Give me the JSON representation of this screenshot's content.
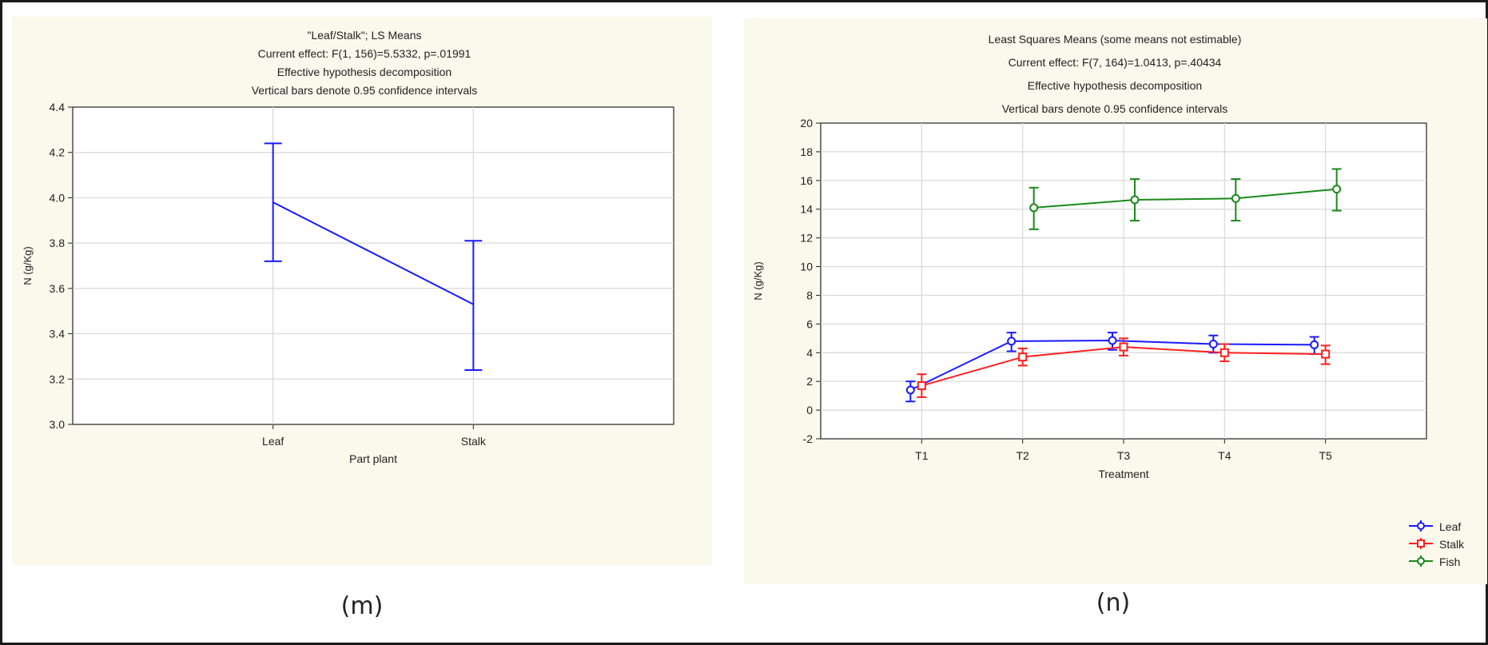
{
  "captions": {
    "m": "(m)",
    "n": "(n)"
  },
  "chart_data": [
    {
      "type": "line",
      "title_lines": [
        "\"Leaf/Stalk\"; LS Means",
        "Current effect: F(1, 156)=5.5332, p=.01991",
        "Effective hypothesis decomposition",
        "Vertical bars denote 0.95 confidence intervals"
      ],
      "xlabel": "Part plant",
      "ylabel": "N (g/Kg)",
      "ylim": [
        3.0,
        4.4
      ],
      "yticks": [
        "3.0",
        "3.2",
        "3.4",
        "3.6",
        "3.8",
        "4.0",
        "4.2",
        "4.4"
      ],
      "categories": [
        "Leaf",
        "Stalk"
      ],
      "grid": true,
      "series": [
        {
          "color": "#1a1aff",
          "values": [
            3.98,
            3.53
          ],
          "ci_low": [
            3.72,
            3.24
          ],
          "ci_high": [
            4.24,
            3.81
          ]
        }
      ]
    },
    {
      "type": "line",
      "title_lines": [
        "Least Squares Means (some means not estimable)",
        "Current effect: F(7, 164)=1.0413, p=.40434",
        "Effective hypothesis decomposition",
        "Vertical bars denote 0.95 confidence intervals"
      ],
      "xlabel": "Treatment",
      "ylabel": "N (g/Kg)",
      "ylim": [
        -2,
        20
      ],
      "yticks": [
        "-2",
        "0",
        "2",
        "4",
        "6",
        "8",
        "10",
        "12",
        "14",
        "16",
        "18",
        "20"
      ],
      "categories": [
        "T1",
        "T2",
        "T3",
        "T4",
        "T5"
      ],
      "grid": true,
      "legend_position": "bottom-right outside",
      "series": [
        {
          "name": "Leaf",
          "color": "#1a1aff",
          "marker": "circle",
          "values": [
            1.4,
            4.8,
            4.85,
            4.6,
            4.55
          ],
          "ci_low": [
            0.6,
            4.1,
            4.2,
            4.0,
            3.9
          ],
          "ci_high": [
            2.0,
            5.4,
            5.4,
            5.2,
            5.1
          ]
        },
        {
          "name": "Stalk",
          "color": "#ff2020",
          "marker": "square",
          "values": [
            1.7,
            3.7,
            4.4,
            4.0,
            3.9
          ],
          "ci_low": [
            0.9,
            3.1,
            3.8,
            3.4,
            3.2
          ],
          "ci_high": [
            2.5,
            4.3,
            5.0,
            4.6,
            4.5
          ]
        },
        {
          "name": "Fish",
          "color": "#1a8a1a",
          "marker": "circle",
          "values": [
            null,
            14.1,
            14.65,
            14.75,
            15.4
          ],
          "ci_low": [
            null,
            12.6,
            13.2,
            13.2,
            13.9
          ],
          "ci_high": [
            null,
            15.5,
            16.1,
            16.1,
            16.8
          ]
        }
      ]
    }
  ]
}
